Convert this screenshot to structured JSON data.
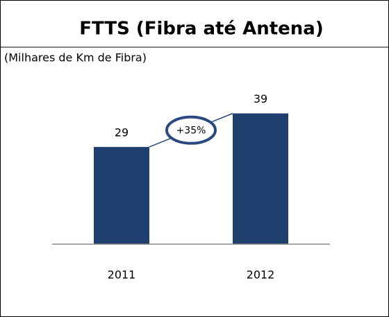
{
  "chart_data": {
    "type": "bar",
    "title": "FTTS (Fibra até Antena)",
    "subtitle": "(Milhares de Km de Fibra)",
    "categories": [
      "2011",
      "2012"
    ],
    "values": [
      29,
      39
    ],
    "color": "#1f3f6e",
    "ylim": [
      0,
      60
    ],
    "annotation": "+35%"
  }
}
